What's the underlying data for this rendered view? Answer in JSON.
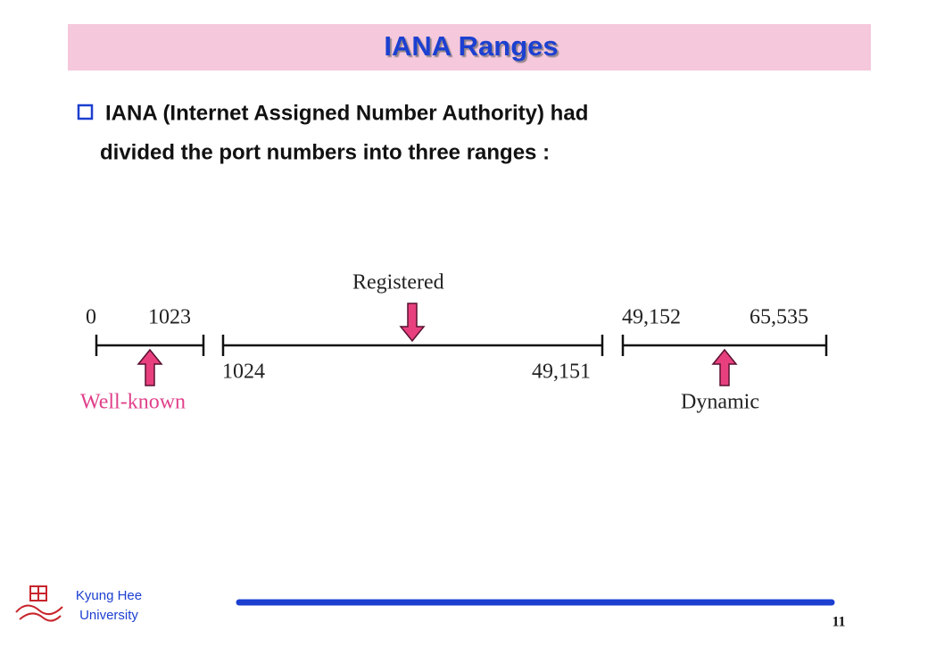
{
  "header": {
    "title": "IANA Ranges"
  },
  "body": {
    "bullet_lines": [
      "IANA (Internet Assigned Number Authority) had",
      "divided the port numbers into three ranges :"
    ]
  },
  "diagram": {
    "ranges": [
      {
        "name": "Well-known",
        "start": "0",
        "end": "1023"
      },
      {
        "name": "Registered",
        "start": "1024",
        "end": "49,151"
      },
      {
        "name": "Dynamic",
        "start": "49,152",
        "end": "65,535"
      }
    ]
  },
  "footer": {
    "institution_lines": [
      "Kyung Hee",
      "University"
    ],
    "page": "11"
  }
}
